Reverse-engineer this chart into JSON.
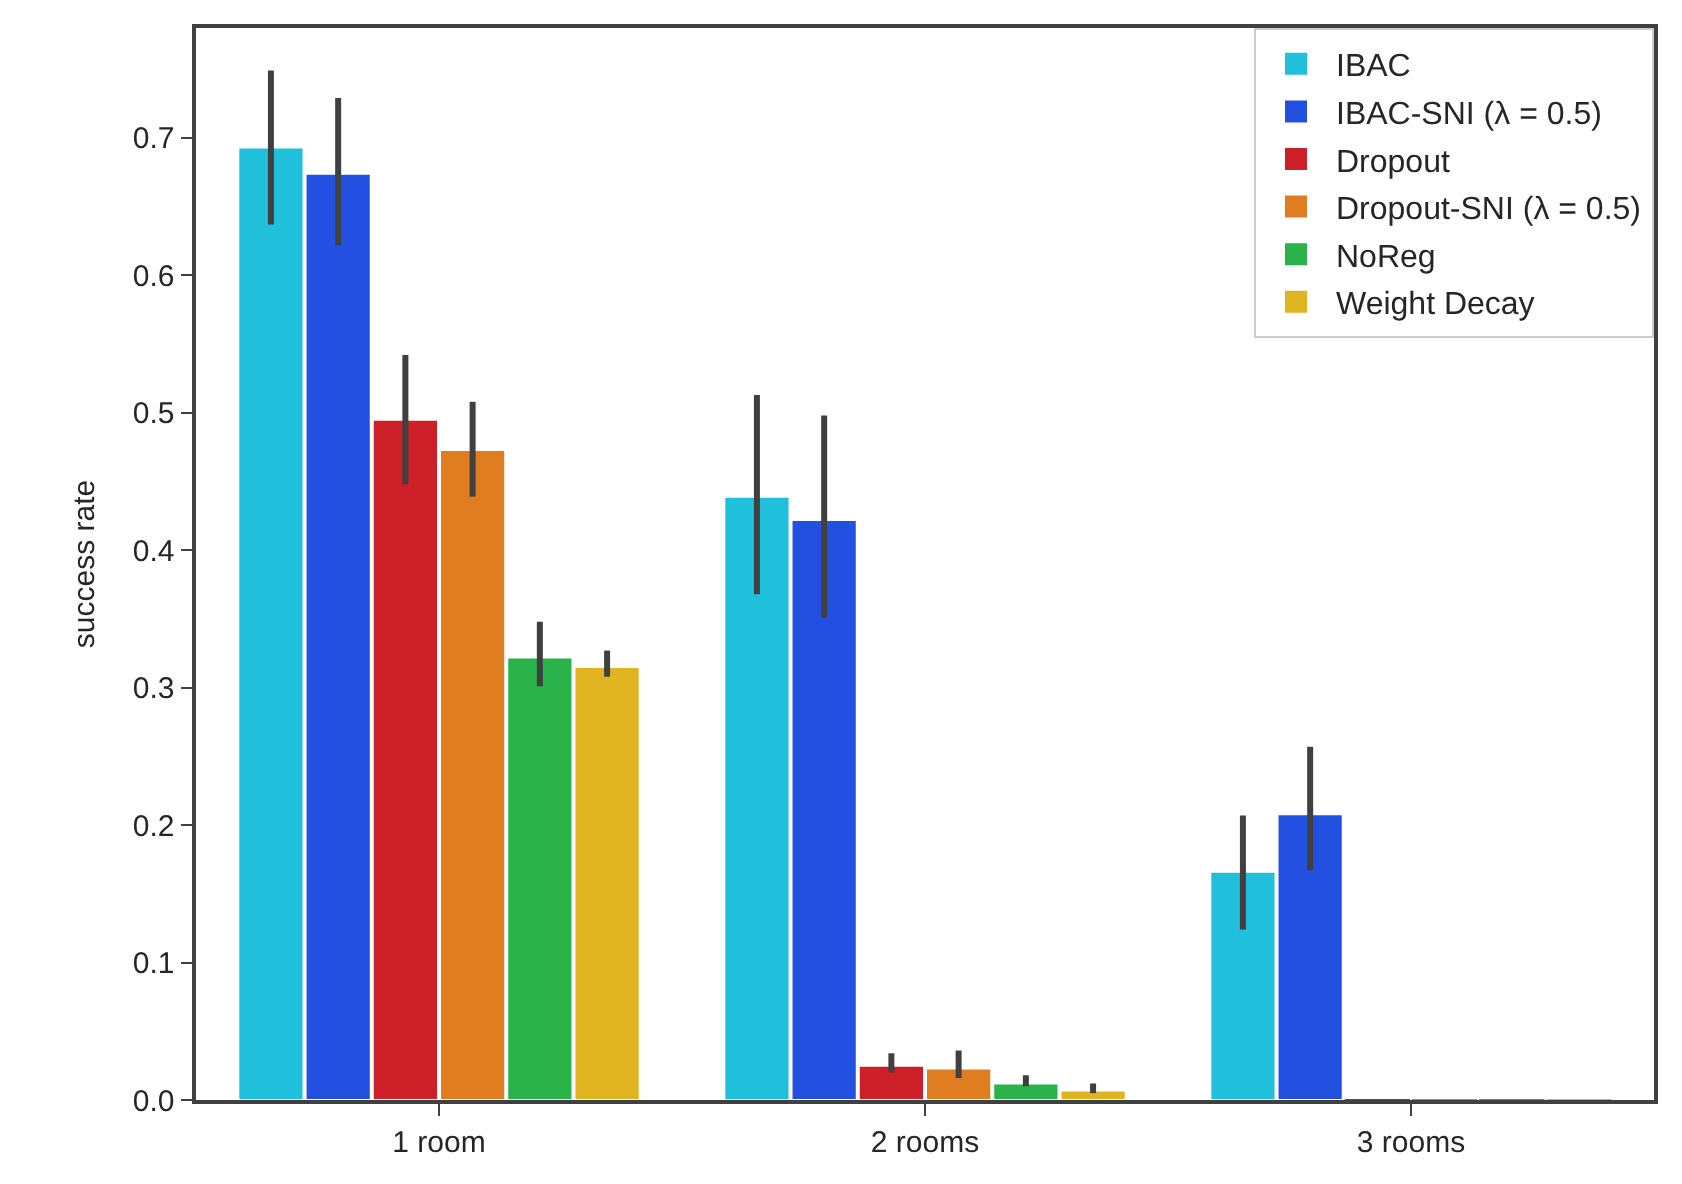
{
  "chart_data": {
    "type": "bar",
    "ylabel": "success rate",
    "categories": [
      "1 room",
      "2 rooms",
      "3 rooms"
    ],
    "series": [
      {
        "name": "IBAC",
        "color": "#20c0dd",
        "values": [
          0.693,
          0.439,
          0.166
        ],
        "errors": [
          [
            0.637,
            0.749
          ],
          [
            0.368,
            0.513
          ],
          [
            0.124,
            0.207
          ]
        ]
      },
      {
        "name": "IBAC-SNI (λ = 0.5)",
        "color": "#2350e0",
        "values": [
          0.674,
          0.422,
          0.208
        ],
        "errors": [
          [
            0.622,
            0.729
          ],
          [
            0.351,
            0.498
          ],
          [
            0.167,
            0.257
          ]
        ]
      },
      {
        "name": "Dropout",
        "color": "#cc1f27",
        "values": [
          0.495,
          0.025,
          0
        ],
        "errors": [
          [
            0.448,
            0.542
          ],
          [
            0.02,
            0.034
          ],
          null
        ]
      },
      {
        "name": "Dropout-SNI (λ = 0.5)",
        "color": "#e07d20",
        "values": [
          0.473,
          0.023,
          0
        ],
        "errors": [
          [
            0.439,
            0.508
          ],
          [
            0.016,
            0.036
          ],
          null
        ]
      },
      {
        "name": "NoReg",
        "color": "#2ab34a",
        "values": [
          0.322,
          0.012,
          0
        ],
        "errors": [
          [
            0.301,
            0.348
          ],
          [
            0.01,
            0.018
          ],
          null
        ]
      },
      {
        "name": "Weight Decay",
        "color": "#e0b420",
        "values": [
          0.315,
          0.007,
          0
        ],
        "errors": [
          [
            0.308,
            0.327
          ],
          [
            0.005,
            0.012
          ],
          null
        ]
      }
    ],
    "ylim": [
      0,
      0.78
    ],
    "yticks": [
      {
        "value": 0,
        "label": "0.0"
      },
      0.1,
      0.2,
      0.3,
      0.4,
      0.5,
      0.6,
      0.7
    ],
    "legend": "top right"
  }
}
